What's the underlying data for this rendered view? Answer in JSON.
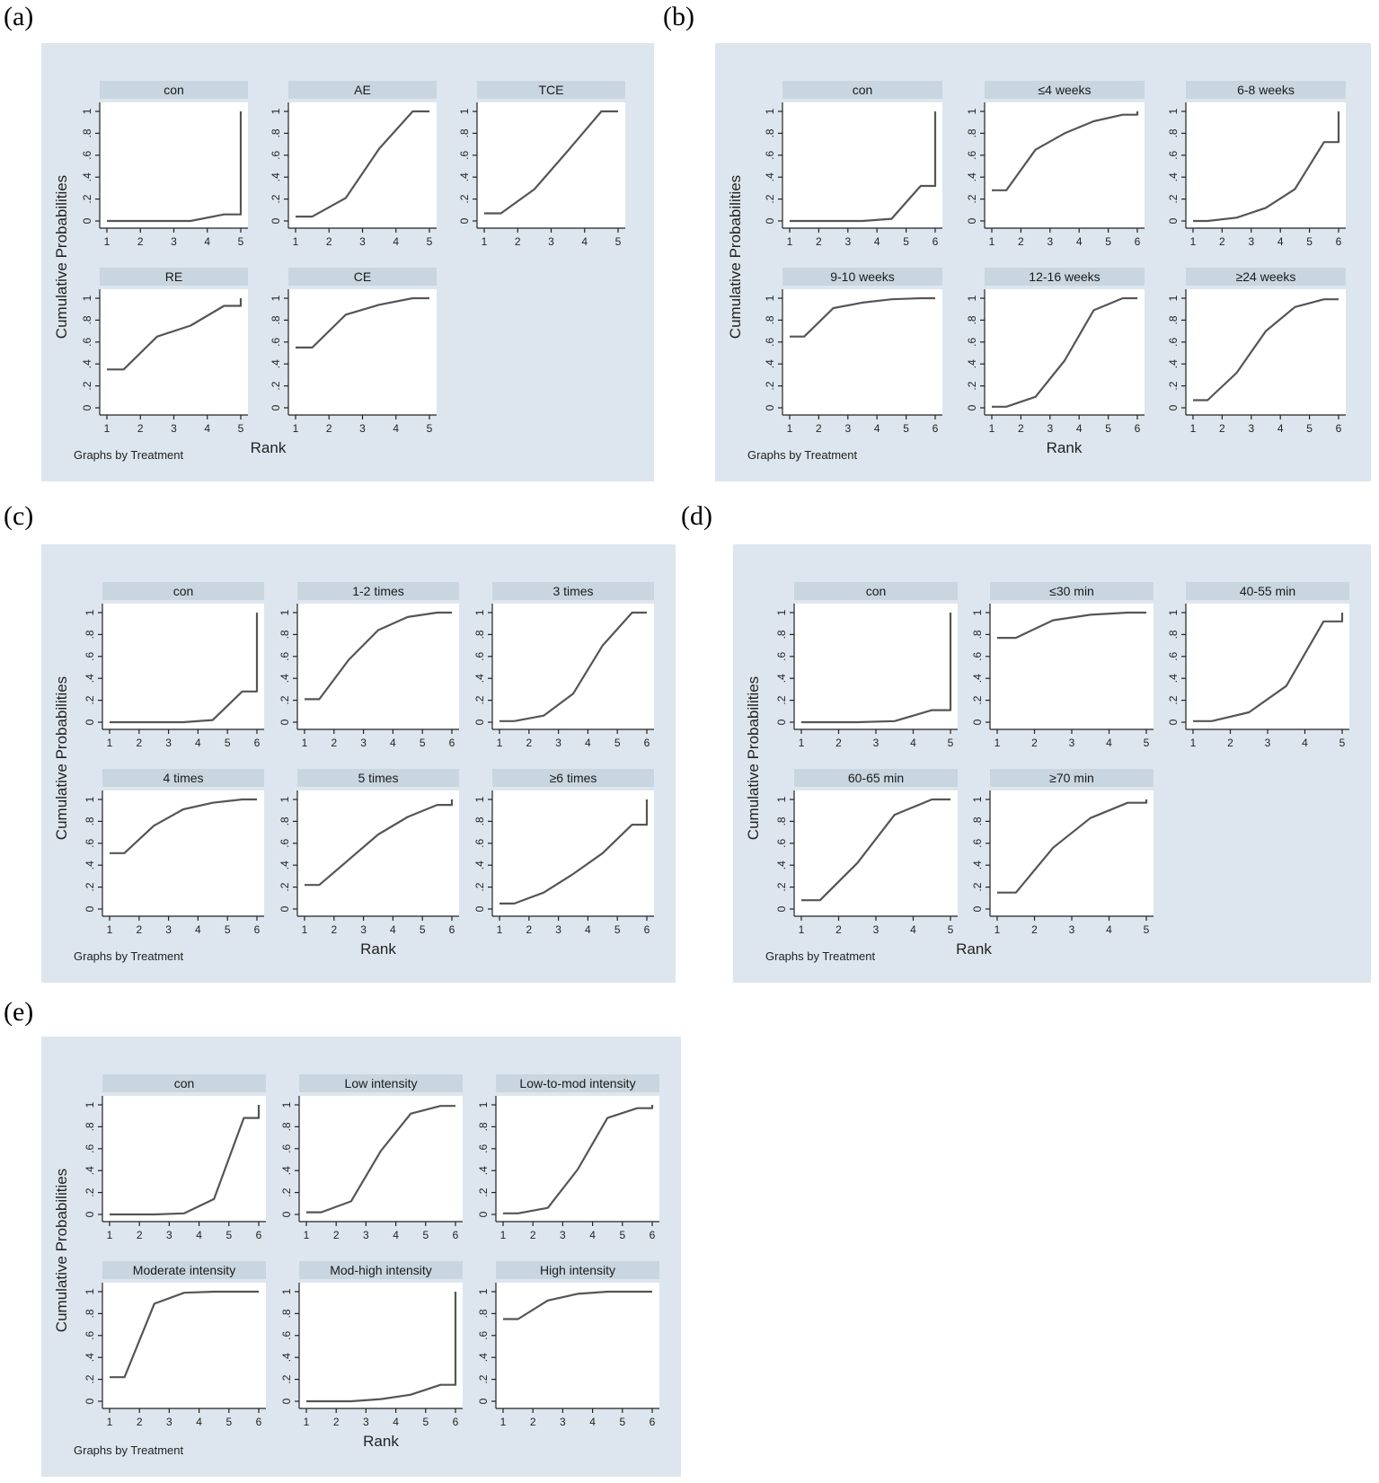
{
  "labels": {
    "a": "(a)",
    "b": "(b)",
    "c": "(c)",
    "d": "(d)",
    "e": "(e)"
  },
  "chart_data": [
    {
      "type": "line",
      "panel": "(a)",
      "xlabel": "Rank",
      "ylabel": "Cumulative Probabilities",
      "note": "Graphs by Treatment",
      "x_ticks": [
        1,
        2,
        3,
        4,
        5
      ],
      "y_ticks": [
        "0",
        ".2",
        ".4",
        ".6",
        ".8",
        "1"
      ],
      "xlim": [
        1,
        5
      ],
      "ylim": [
        0,
        1
      ],
      "grid": false,
      "series": [
        {
          "name": "con",
          "x": [
            1,
            1.5,
            2.5,
            3.5,
            4.5,
            5,
            5
          ],
          "y": [
            0,
            0,
            0,
            0,
            0.06,
            0.06,
            1
          ]
        },
        {
          "name": "AE",
          "x": [
            1,
            1.5,
            2.5,
            3.5,
            4.5,
            5
          ],
          "y": [
            0.04,
            0.04,
            0.21,
            0.66,
            1,
            1
          ]
        },
        {
          "name": "TCE",
          "x": [
            1,
            1.5,
            2.5,
            3.5,
            4.5,
            5
          ],
          "y": [
            0.07,
            0.07,
            0.29,
            0.64,
            1,
            1
          ]
        },
        {
          "name": "RE",
          "x": [
            1,
            1.5,
            2.5,
            3.5,
            4.5,
            5,
            5
          ],
          "y": [
            0.35,
            0.35,
            0.65,
            0.75,
            0.93,
            0.93,
            1
          ]
        },
        {
          "name": "CE",
          "x": [
            1,
            1.5,
            2.5,
            3.5,
            4.5,
            5
          ],
          "y": [
            0.55,
            0.55,
            0.85,
            0.94,
            1,
            1
          ]
        }
      ]
    },
    {
      "type": "line",
      "panel": "(b)",
      "xlabel": "Rank",
      "ylabel": "Cumulative Probabilities",
      "note": "Graphs by Treatment",
      "x_ticks": [
        1,
        2,
        3,
        4,
        5,
        6
      ],
      "y_ticks": [
        "0",
        ".2",
        ".4",
        ".6",
        ".8",
        "1"
      ],
      "xlim": [
        1,
        6
      ],
      "ylim": [
        0,
        1
      ],
      "grid": false,
      "series": [
        {
          "name": "con",
          "x": [
            1,
            1.5,
            2.5,
            3.5,
            4.5,
            5.5,
            6,
            6
          ],
          "y": [
            0,
            0,
            0,
            0,
            0.02,
            0.32,
            0.32,
            1
          ]
        },
        {
          "name": "≤4 weeks",
          "x": [
            1,
            1.5,
            2.5,
            3.5,
            4.5,
            5.5,
            6,
            6
          ],
          "y": [
            0.28,
            0.28,
            0.65,
            0.8,
            0.91,
            0.97,
            0.97,
            1
          ]
        },
        {
          "name": "6-8 weeks",
          "x": [
            1,
            1.5,
            2.5,
            3.5,
            4.5,
            5.5,
            6,
            6
          ],
          "y": [
            0,
            0,
            0.03,
            0.12,
            0.29,
            0.72,
            0.72,
            1
          ]
        },
        {
          "name": "9-10 weeks",
          "x": [
            1,
            1.5,
            2.5,
            3.5,
            4.5,
            5.5,
            6
          ],
          "y": [
            0.65,
            0.65,
            0.91,
            0.96,
            0.99,
            1,
            1
          ]
        },
        {
          "name": "12-16 weeks",
          "x": [
            1,
            1.5,
            2.5,
            3.5,
            4.5,
            5.5,
            6
          ],
          "y": [
            0.01,
            0.01,
            0.1,
            0.43,
            0.89,
            1,
            1
          ]
        },
        {
          "name": "≥24 weeks",
          "x": [
            1,
            1.5,
            2.5,
            3.5,
            4.5,
            5.5,
            6
          ],
          "y": [
            0.07,
            0.07,
            0.32,
            0.7,
            0.92,
            0.99,
            0.99
          ]
        }
      ]
    },
    {
      "type": "line",
      "panel": "(c)",
      "xlabel": "Rank",
      "ylabel": "Cumulative Probabilities",
      "note": "Graphs by Treatment",
      "x_ticks": [
        1,
        2,
        3,
        4,
        5,
        6
      ],
      "y_ticks": [
        "0",
        ".2",
        ".4",
        ".6",
        ".8",
        "1"
      ],
      "xlim": [
        1,
        6
      ],
      "ylim": [
        0,
        1
      ],
      "grid": false,
      "series": [
        {
          "name": "con",
          "x": [
            1,
            1.5,
            2.5,
            3.5,
            4.5,
            5.5,
            6,
            6
          ],
          "y": [
            0,
            0,
            0,
            0,
            0.02,
            0.28,
            0.28,
            1
          ]
        },
        {
          "name": "1-2 times",
          "x": [
            1,
            1.5,
            2.5,
            3.5,
            4.5,
            5.5,
            6
          ],
          "y": [
            0.21,
            0.21,
            0.57,
            0.84,
            0.96,
            1,
            1
          ]
        },
        {
          "name": "3 times",
          "x": [
            1,
            1.5,
            2.5,
            3.5,
            4.5,
            5.5,
            6
          ],
          "y": [
            0.01,
            0.01,
            0.06,
            0.26,
            0.7,
            1,
            1
          ]
        },
        {
          "name": "4 times",
          "x": [
            1,
            1.5,
            2.5,
            3.5,
            4.5,
            5.5,
            6
          ],
          "y": [
            0.51,
            0.51,
            0.76,
            0.91,
            0.97,
            1,
            1
          ]
        },
        {
          "name": "5 times",
          "x": [
            1,
            1.5,
            2.5,
            3.5,
            4.5,
            5.5,
            6,
            6
          ],
          "y": [
            0.22,
            0.22,
            0.45,
            0.68,
            0.84,
            0.95,
            0.95,
            1
          ]
        },
        {
          "name": "≥6 times",
          "x": [
            1,
            1.5,
            2.5,
            3.5,
            4.5,
            5.5,
            6,
            6
          ],
          "y": [
            0.05,
            0.05,
            0.15,
            0.32,
            0.51,
            0.77,
            0.77,
            1
          ]
        }
      ]
    },
    {
      "type": "line",
      "panel": "(d)",
      "xlabel": "Rank",
      "ylabel": "Cumulative Probabilities",
      "note": "Graphs by Treatment",
      "x_ticks": [
        1,
        2,
        3,
        4,
        5
      ],
      "y_ticks": [
        "0",
        ".2",
        ".4",
        ".6",
        ".8",
        "1"
      ],
      "xlim": [
        1,
        5
      ],
      "ylim": [
        0,
        1
      ],
      "grid": false,
      "series": [
        {
          "name": "con",
          "x": [
            1,
            1.5,
            2.5,
            3.5,
            4.5,
            5,
            5
          ],
          "y": [
            0,
            0,
            0,
            0.01,
            0.11,
            0.11,
            1
          ]
        },
        {
          "name": "≤30 min",
          "x": [
            1,
            1.5,
            2.5,
            3.5,
            4.5,
            5
          ],
          "y": [
            0.77,
            0.77,
            0.93,
            0.98,
            1,
            1
          ]
        },
        {
          "name": "40-55 min",
          "x": [
            1,
            1.5,
            2.5,
            3.5,
            4.5,
            5,
            5
          ],
          "y": [
            0.01,
            0.01,
            0.09,
            0.33,
            0.92,
            0.92,
            1
          ]
        },
        {
          "name": "60-65 min",
          "x": [
            1,
            1.5,
            2.5,
            3.5,
            4.5,
            5
          ],
          "y": [
            0.08,
            0.08,
            0.42,
            0.86,
            1,
            1
          ]
        },
        {
          "name": "≥70 min",
          "x": [
            1,
            1.5,
            2.5,
            3.5,
            4.5,
            5,
            5
          ],
          "y": [
            0.15,
            0.15,
            0.56,
            0.83,
            0.97,
            0.97,
            1
          ]
        }
      ]
    },
    {
      "type": "line",
      "panel": "(e)",
      "xlabel": "Rank",
      "ylabel": "Cumulative Probabilities",
      "note": "Graphs by Treatment",
      "x_ticks": [
        1,
        2,
        3,
        4,
        5,
        6
      ],
      "y_ticks": [
        "0",
        ".2",
        ".4",
        ".6",
        ".8",
        "1"
      ],
      "xlim": [
        1,
        6
      ],
      "ylim": [
        0,
        1
      ],
      "grid": false,
      "series": [
        {
          "name": "con",
          "x": [
            1,
            1.5,
            2.5,
            3.5,
            4.5,
            5.5,
            6,
            6
          ],
          "y": [
            0,
            0,
            0,
            0.01,
            0.14,
            0.88,
            0.88,
            1
          ]
        },
        {
          "name": "Low intensity",
          "x": [
            1,
            1.5,
            2.5,
            3.5,
            4.5,
            5.5,
            6
          ],
          "y": [
            0.02,
            0.02,
            0.12,
            0.58,
            0.92,
            0.99,
            0.99
          ]
        },
        {
          "name": "Low-to-mod intensity",
          "x": [
            1,
            1.5,
            2.5,
            3.5,
            4.5,
            5.5,
            6,
            6
          ],
          "y": [
            0.01,
            0.01,
            0.06,
            0.41,
            0.88,
            0.97,
            0.97,
            1
          ]
        },
        {
          "name": "Moderate intensity",
          "x": [
            1,
            1.5,
            2.5,
            3.5,
            4.5,
            5.5,
            6
          ],
          "y": [
            0.22,
            0.22,
            0.89,
            0.99,
            1,
            1,
            1
          ]
        },
        {
          "name": "Mod-high intensity",
          "x": [
            1,
            1.5,
            2.5,
            3.5,
            4.5,
            5.5,
            6,
            6
          ],
          "y": [
            0,
            0,
            0,
            0.02,
            0.06,
            0.15,
            0.15,
            1
          ]
        },
        {
          "name": "High intensity",
          "x": [
            1,
            1.5,
            2.5,
            3.5,
            4.5,
            5.5,
            6
          ],
          "y": [
            0.75,
            0.75,
            0.92,
            0.98,
            1,
            1,
            1
          ]
        }
      ]
    }
  ]
}
